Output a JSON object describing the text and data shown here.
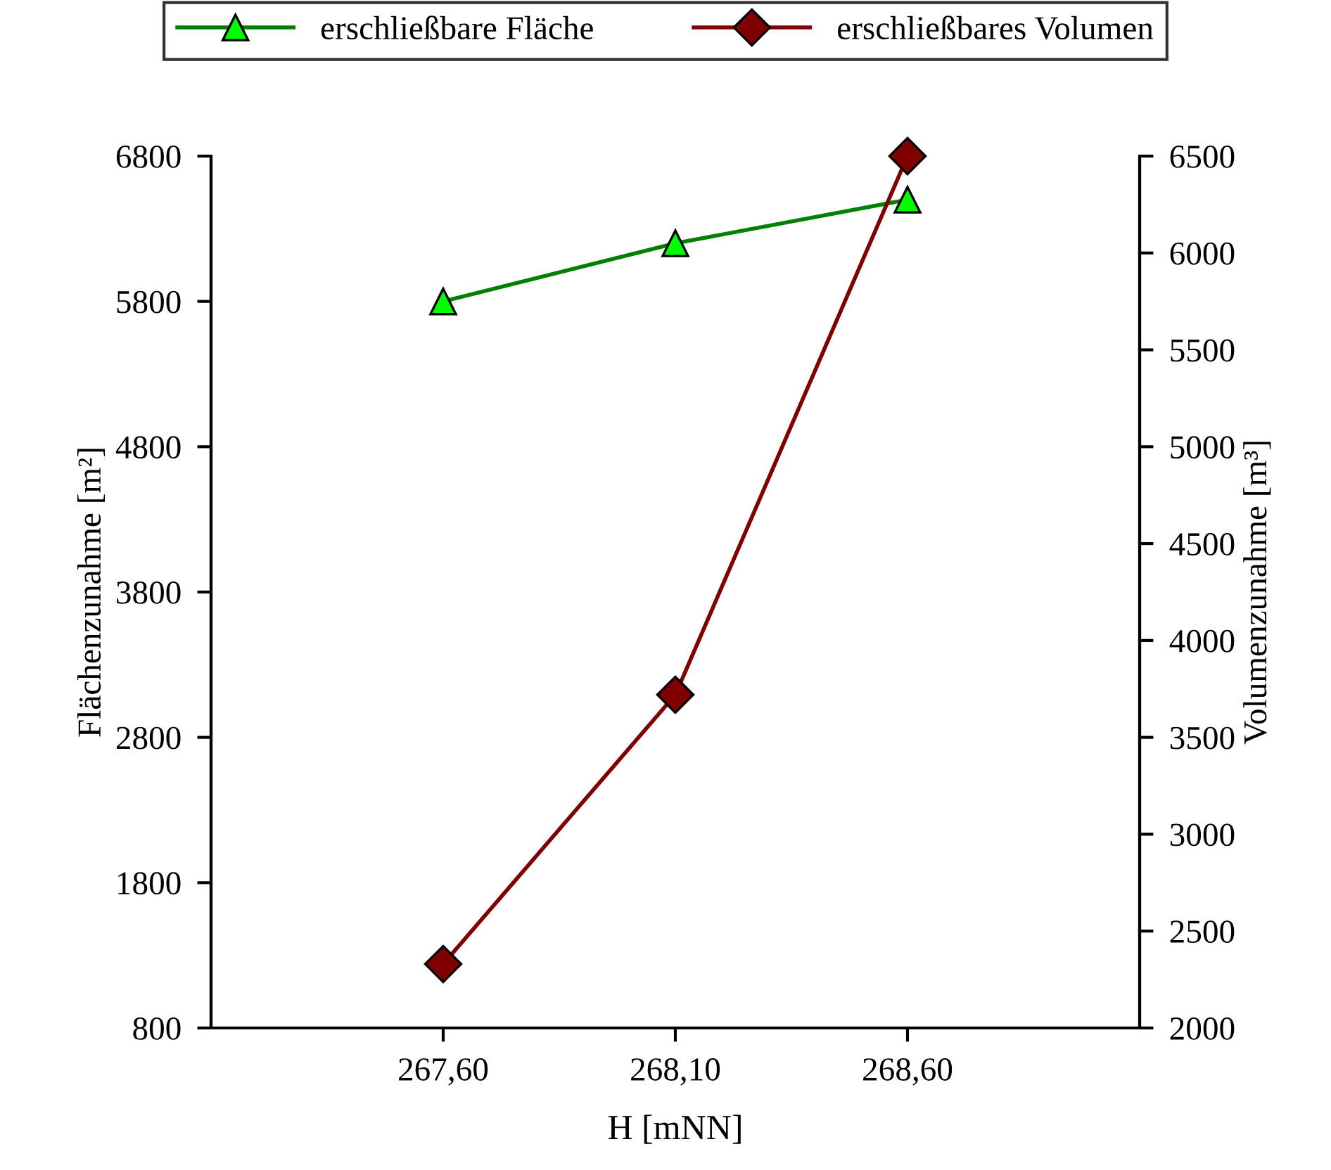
{
  "chart_data": {
    "type": "line",
    "xlabel": "H [mNN]",
    "ylabel": "Flächenzunahme [m²]",
    "y2label": "Volumenzunahme [m³]",
    "x": [
      267.6,
      268.1,
      268.6
    ],
    "series": [
      {
        "name": "erschließbare Fläche",
        "color": "#008000",
        "values": [
          5800,
          6200,
          6500
        ],
        "marker": "triangle",
        "colors": [
          "#00ff00",
          "#00ff00",
          "#00ff00"
        ]
      },
      {
        "name": "erschließbares Volumen",
        "color": "#800000",
        "values": [
          2330,
          3720,
          6500
        ],
        "marker": "diamond",
        "colors": [
          "#800000",
          "#800000",
          "#800000"
        ],
        "axis": "y2"
      }
    ],
    "xlim": [
      267.1,
      269.1
    ],
    "xticks": [
      {
        "value": 267.6,
        "label": "267,60"
      },
      {
        "value": 268.1,
        "label": "268,10"
      },
      {
        "value": 268.6,
        "label": "268,60"
      }
    ],
    "ylim": [
      800,
      6800
    ],
    "yticks": [
      800,
      1800,
      2800,
      3800,
      4800,
      5800,
      6800
    ],
    "y2lim": [
      2000,
      6500
    ],
    "y2ticks": [
      2000,
      2500,
      3000,
      3500,
      4000,
      4500,
      5000,
      5500,
      6000,
      6500
    ],
    "legend": "top",
    "grid": false
  }
}
